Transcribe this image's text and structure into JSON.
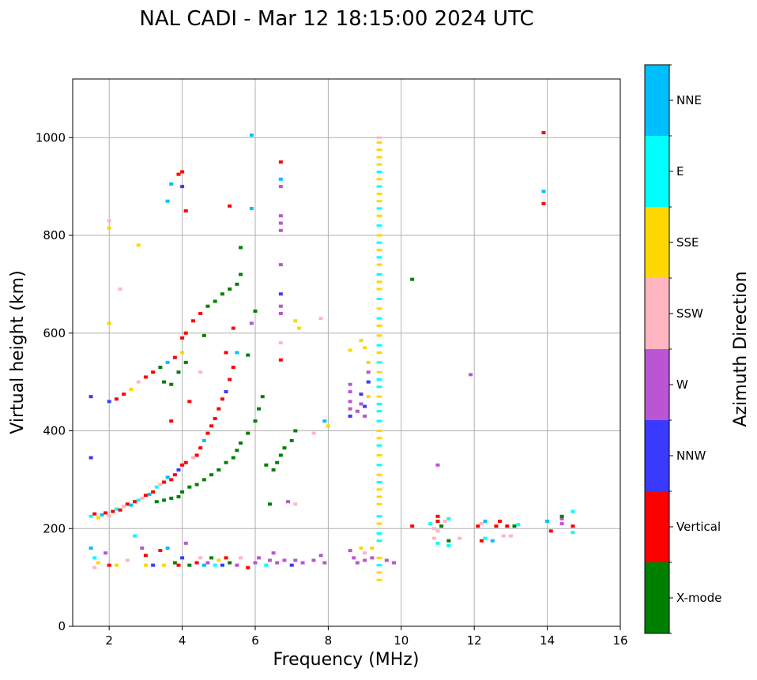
{
  "chart_data": {
    "type": "scatter",
    "title": "NAL CADI - Mar 12 18:15:00 2024 UTC",
    "xlabel": "Frequency (MHz)",
    "ylabel": "Virtual height (km)",
    "xlim": [
      1,
      16
    ],
    "ylim": [
      0,
      1120
    ],
    "xticks": [
      2,
      4,
      6,
      8,
      10,
      12,
      14,
      16
    ],
    "yticks": [
      0,
      200,
      400,
      600,
      800,
      1000
    ],
    "grid": true,
    "colorbar": {
      "label": "Azimuth Direction",
      "categories": [
        "X-mode",
        "Vertical",
        "NNW",
        "W",
        "SSW",
        "SSE",
        "E",
        "NNE"
      ],
      "colors": [
        "#008000",
        "#ff0000",
        "#3a3aff",
        "#ba55d3",
        "#ffb6c1",
        "#ffd700",
        "#00ffff",
        "#00bfff"
      ]
    },
    "points": [
      [
        1.5,
        160,
        7
      ],
      [
        1.6,
        140,
        6
      ],
      [
        1.7,
        130,
        5
      ],
      [
        1.6,
        120,
        4
      ],
      [
        1.9,
        150,
        3
      ],
      [
        2,
        125,
        1
      ],
      [
        2.2,
        125,
        5
      ],
      [
        2.5,
        135,
        4
      ],
      [
        2.7,
        185,
        6
      ],
      [
        2.9,
        160,
        3
      ],
      [
        3,
        145,
        1
      ],
      [
        3,
        125,
        5
      ],
      [
        3.2,
        125,
        2
      ],
      [
        3.4,
        155,
        1
      ],
      [
        3.5,
        125,
        5
      ],
      [
        3.6,
        160,
        7
      ],
      [
        3.8,
        130,
        0
      ],
      [
        3.9,
        125,
        1
      ],
      [
        4,
        140,
        2
      ],
      [
        4.1,
        170,
        3
      ],
      [
        4.2,
        125,
        0
      ],
      [
        4.4,
        130,
        1
      ],
      [
        4.5,
        140,
        4
      ],
      [
        4.6,
        125,
        7
      ],
      [
        4.7,
        130,
        3
      ],
      [
        4.8,
        140,
        0
      ],
      [
        4.9,
        125,
        6
      ],
      [
        5,
        135,
        5
      ],
      [
        5.1,
        125,
        2
      ],
      [
        5.2,
        140,
        1
      ],
      [
        5.3,
        130,
        0
      ],
      [
        5.5,
        125,
        3
      ],
      [
        5.6,
        140,
        4
      ],
      [
        5.8,
        120,
        1
      ],
      [
        6,
        130,
        3
      ],
      [
        6.1,
        140,
        3
      ],
      [
        6.3,
        125,
        6
      ],
      [
        6.4,
        135,
        3
      ],
      [
        6.5,
        150,
        3
      ],
      [
        6.6,
        130,
        3
      ],
      [
        6.8,
        135,
        3
      ],
      [
        7,
        125,
        2
      ],
      [
        7.1,
        135,
        3
      ],
      [
        7.3,
        130,
        3
      ],
      [
        7.6,
        135,
        3
      ],
      [
        7.8,
        145,
        3
      ],
      [
        7.9,
        130,
        3
      ],
      [
        8.6,
        155,
        3
      ],
      [
        8.7,
        140,
        3
      ],
      [
        8.8,
        130,
        3
      ],
      [
        8.9,
        160,
        5
      ],
      [
        9,
        150,
        4
      ],
      [
        9,
        135,
        3
      ],
      [
        9.2,
        140,
        3
      ],
      [
        9.2,
        160,
        5
      ],
      [
        9.6,
        135,
        3
      ],
      [
        9.8,
        130,
        3
      ],
      [
        1.5,
        225,
        6
      ],
      [
        1.6,
        230,
        1
      ],
      [
        1.7,
        222,
        5
      ],
      [
        1.8,
        228,
        7
      ],
      [
        1.9,
        232,
        1
      ],
      [
        2,
        226,
        4
      ],
      [
        2.1,
        235,
        1
      ],
      [
        2.2,
        240,
        6
      ],
      [
        2.3,
        238,
        1
      ],
      [
        2.4,
        245,
        4
      ],
      [
        2.5,
        250,
        1
      ],
      [
        2.6,
        248,
        7
      ],
      [
        2.7,
        255,
        1
      ],
      [
        2.8,
        258,
        6
      ],
      [
        2.9,
        262,
        4
      ],
      [
        3,
        268,
        1
      ],
      [
        3.1,
        270,
        7
      ],
      [
        3.2,
        275,
        1
      ],
      [
        3.3,
        285,
        6
      ],
      [
        3.4,
        290,
        4
      ],
      [
        3.5,
        295,
        1
      ],
      [
        3.6,
        305,
        7
      ],
      [
        3.7,
        300,
        1
      ],
      [
        3.8,
        310,
        1
      ],
      [
        3.9,
        320,
        2
      ],
      [
        4,
        330,
        1
      ],
      [
        4.1,
        335,
        1
      ],
      [
        4.3,
        345,
        4
      ],
      [
        4.4,
        350,
        1
      ],
      [
        4.5,
        365,
        1
      ],
      [
        4.6,
        380,
        7
      ],
      [
        4.7,
        395,
        1
      ],
      [
        4.8,
        410,
        1
      ],
      [
        4.9,
        425,
        1
      ],
      [
        5,
        445,
        1
      ],
      [
        5.1,
        465,
        1
      ],
      [
        5.2,
        480,
        2
      ],
      [
        5.3,
        505,
        1
      ],
      [
        5.4,
        530,
        1
      ],
      [
        5.5,
        560,
        7
      ],
      [
        3.3,
        255,
        0
      ],
      [
        3.5,
        258,
        0
      ],
      [
        3.7,
        262,
        0
      ],
      [
        3.9,
        265,
        0
      ],
      [
        4,
        275,
        0
      ],
      [
        4.2,
        285,
        0
      ],
      [
        4.4,
        290,
        0
      ],
      [
        4.6,
        300,
        0
      ],
      [
        4.8,
        310,
        0
      ],
      [
        5,
        320,
        0
      ],
      [
        5.2,
        335,
        0
      ],
      [
        5.4,
        345,
        0
      ],
      [
        5.5,
        360,
        0
      ],
      [
        5.6,
        375,
        0
      ],
      [
        5.8,
        395,
        0
      ],
      [
        6,
        420,
        0
      ],
      [
        6.1,
        445,
        0
      ],
      [
        6.2,
        470,
        0
      ],
      [
        6.3,
        330,
        0
      ],
      [
        6.5,
        320,
        0
      ],
      [
        6.6,
        335,
        0
      ],
      [
        6.7,
        350,
        0
      ],
      [
        6.8,
        365,
        0
      ],
      [
        7,
        380,
        0
      ],
      [
        7.1,
        400,
        0
      ],
      [
        6.4,
        250,
        0
      ],
      [
        6.9,
        255,
        3
      ],
      [
        7.1,
        250,
        4
      ],
      [
        2,
        460,
        2
      ],
      [
        2.2,
        465,
        1
      ],
      [
        2.4,
        475,
        1
      ],
      [
        2.6,
        485,
        5
      ],
      [
        2.8,
        500,
        4
      ],
      [
        3,
        510,
        1
      ],
      [
        3.2,
        520,
        1
      ],
      [
        3.4,
        530,
        0
      ],
      [
        3.6,
        540,
        7
      ],
      [
        3.8,
        550,
        1
      ],
      [
        4,
        560,
        5
      ],
      [
        4,
        590,
        1
      ],
      [
        4.1,
        600,
        1
      ],
      [
        4.3,
        625,
        1
      ],
      [
        4.5,
        640,
        1
      ],
      [
        4.7,
        655,
        0
      ],
      [
        4.9,
        665,
        0
      ],
      [
        5.1,
        680,
        0
      ],
      [
        5.3,
        690,
        0
      ],
      [
        5.5,
        700,
        0
      ],
      [
        5.6,
        720,
        0
      ],
      [
        5.6,
        775,
        0
      ],
      [
        3.5,
        500,
        0
      ],
      [
        3.7,
        495,
        0
      ],
      [
        3.9,
        520,
        0
      ],
      [
        4.1,
        540,
        0
      ],
      [
        4.6,
        595,
        0
      ],
      [
        5.2,
        560,
        1
      ],
      [
        5.4,
        610,
        1
      ],
      [
        5.9,
        620,
        3
      ],
      [
        6,
        645,
        0
      ],
      [
        5.8,
        555,
        0
      ],
      [
        4.5,
        520,
        4
      ],
      [
        4.2,
        460,
        1
      ],
      [
        3.7,
        420,
        1
      ],
      [
        3.9,
        925,
        1
      ],
      [
        4,
        930,
        1
      ],
      [
        4,
        900,
        2
      ],
      [
        3.7,
        905,
        7
      ],
      [
        3.6,
        870,
        7
      ],
      [
        4.1,
        850,
        1
      ],
      [
        5.3,
        860,
        1
      ],
      [
        5.9,
        1005,
        7
      ],
      [
        5.9,
        855,
        7
      ],
      [
        6.7,
        950,
        1
      ],
      [
        6.7,
        915,
        7
      ],
      [
        6.7,
        900,
        3
      ],
      [
        6.7,
        840,
        3
      ],
      [
        6.7,
        825,
        3
      ],
      [
        6.7,
        810,
        3
      ],
      [
        6.7,
        740,
        3
      ],
      [
        6.7,
        680,
        2
      ],
      [
        6.7,
        655,
        3
      ],
      [
        6.7,
        640,
        3
      ],
      [
        6.7,
        580,
        4
      ],
      [
        6.7,
        545,
        1
      ],
      [
        7.1,
        625,
        5
      ],
      [
        7.2,
        610,
        5
      ],
      [
        7.8,
        630,
        4
      ],
      [
        2,
        815,
        5
      ],
      [
        2,
        830,
        4
      ],
      [
        2.3,
        690,
        4
      ],
      [
        2,
        620,
        5
      ],
      [
        2.8,
        780,
        5
      ],
      [
        1.5,
        470,
        2
      ],
      [
        1.5,
        345,
        2
      ],
      [
        7.6,
        395,
        4
      ],
      [
        7.9,
        420,
        7
      ],
      [
        8,
        410,
        5
      ],
      [
        8.6,
        495,
        3
      ],
      [
        8.6,
        480,
        3
      ],
      [
        8.6,
        460,
        3
      ],
      [
        8.6,
        445,
        3
      ],
      [
        8.6,
        430,
        2
      ],
      [
        8.8,
        440,
        3
      ],
      [
        8.9,
        475,
        2
      ],
      [
        8.9,
        455,
        3
      ],
      [
        9,
        430,
        3
      ],
      [
        9,
        450,
        2
      ],
      [
        9.1,
        500,
        2
      ],
      [
        9.1,
        470,
        5
      ],
      [
        8.9,
        585,
        5
      ],
      [
        9,
        570,
        5
      ],
      [
        8.6,
        565,
        5
      ],
      [
        9.1,
        540,
        5
      ],
      [
        9.1,
        520,
        3
      ],
      [
        9.4,
        95,
        5
      ],
      [
        9.4,
        110,
        5
      ],
      [
        9.4,
        125,
        6
      ],
      [
        9.4,
        140,
        5
      ],
      [
        9.4,
        175,
        6
      ],
      [
        9.4,
        190,
        6
      ],
      [
        9.4,
        210,
        5
      ],
      [
        9.4,
        225,
        6
      ],
      [
        9.4,
        250,
        5
      ],
      [
        9.4,
        265,
        5
      ],
      [
        9.4,
        280,
        5
      ],
      [
        9.4,
        295,
        6
      ],
      [
        9.4,
        310,
        5
      ],
      [
        9.4,
        330,
        6
      ],
      [
        9.4,
        350,
        5
      ],
      [
        9.4,
        370,
        6
      ],
      [
        9.4,
        385,
        5
      ],
      [
        9.4,
        400,
        5
      ],
      [
        9.4,
        420,
        6
      ],
      [
        9.4,
        440,
        6
      ],
      [
        9.4,
        455,
        6
      ],
      [
        9.4,
        470,
        5
      ],
      [
        9.4,
        490,
        6
      ],
      [
        9.4,
        505,
        6
      ],
      [
        9.4,
        520,
        5
      ],
      [
        9.4,
        540,
        6
      ],
      [
        9.4,
        560,
        5
      ],
      [
        9.4,
        575,
        6
      ],
      [
        9.4,
        595,
        5
      ],
      [
        9.4,
        615,
        5
      ],
      [
        9.4,
        630,
        6
      ],
      [
        9.4,
        650,
        5
      ],
      [
        9.4,
        670,
        6
      ],
      [
        9.4,
        690,
        5
      ],
      [
        9.4,
        705,
        5
      ],
      [
        9.4,
        720,
        6
      ],
      [
        9.4,
        740,
        5
      ],
      [
        9.4,
        755,
        6
      ],
      [
        9.4,
        770,
        5
      ],
      [
        9.4,
        785,
        6
      ],
      [
        9.4,
        800,
        5
      ],
      [
        9.4,
        820,
        6
      ],
      [
        9.4,
        840,
        5
      ],
      [
        9.4,
        855,
        6
      ],
      [
        9.4,
        870,
        5
      ],
      [
        9.4,
        885,
        5
      ],
      [
        9.4,
        900,
        6
      ],
      [
        9.4,
        915,
        5
      ],
      [
        9.4,
        930,
        6
      ],
      [
        9.4,
        945,
        5
      ],
      [
        9.4,
        960,
        5
      ],
      [
        9.4,
        975,
        5
      ],
      [
        9.4,
        990,
        5
      ],
      [
        9.4,
        1000,
        4
      ],
      [
        10.3,
        710,
        0
      ],
      [
        10.3,
        205,
        1
      ],
      [
        10.8,
        210,
        6
      ],
      [
        10.9,
        200,
        4
      ],
      [
        11,
        215,
        1
      ],
      [
        11,
        195,
        4
      ],
      [
        11,
        225,
        1
      ],
      [
        11.2,
        215,
        4
      ],
      [
        11.3,
        220,
        6
      ],
      [
        11.1,
        205,
        0
      ],
      [
        10.9,
        180,
        4
      ],
      [
        11,
        170,
        6
      ],
      [
        11.3,
        175,
        0
      ],
      [
        11.3,
        165,
        6
      ],
      [
        11.6,
        180,
        4
      ],
      [
        11,
        330,
        3
      ],
      [
        11.9,
        515,
        3
      ],
      [
        12.1,
        205,
        1
      ],
      [
        12.2,
        210,
        4
      ],
      [
        12.3,
        215,
        7
      ],
      [
        12.7,
        215,
        1
      ],
      [
        12.6,
        205,
        1
      ],
      [
        12.9,
        205,
        1
      ],
      [
        13.1,
        205,
        0
      ],
      [
        13.2,
        208,
        6
      ],
      [
        12.3,
        180,
        6
      ],
      [
        12.2,
        175,
        1
      ],
      [
        12.5,
        175,
        7
      ],
      [
        12.8,
        185,
        4
      ],
      [
        13,
        185,
        4
      ],
      [
        13.9,
        1010,
        1
      ],
      [
        13.9,
        865,
        1
      ],
      [
        13.9,
        890,
        7
      ],
      [
        14,
        215,
        7
      ],
      [
        14.4,
        220,
        3
      ],
      [
        14.4,
        225,
        0
      ],
      [
        14.4,
        210,
        3
      ],
      [
        14.7,
        235,
        6
      ],
      [
        14.7,
        205,
        1
      ],
      [
        14.1,
        195,
        1
      ],
      [
        14.7,
        192,
        6
      ]
    ]
  }
}
